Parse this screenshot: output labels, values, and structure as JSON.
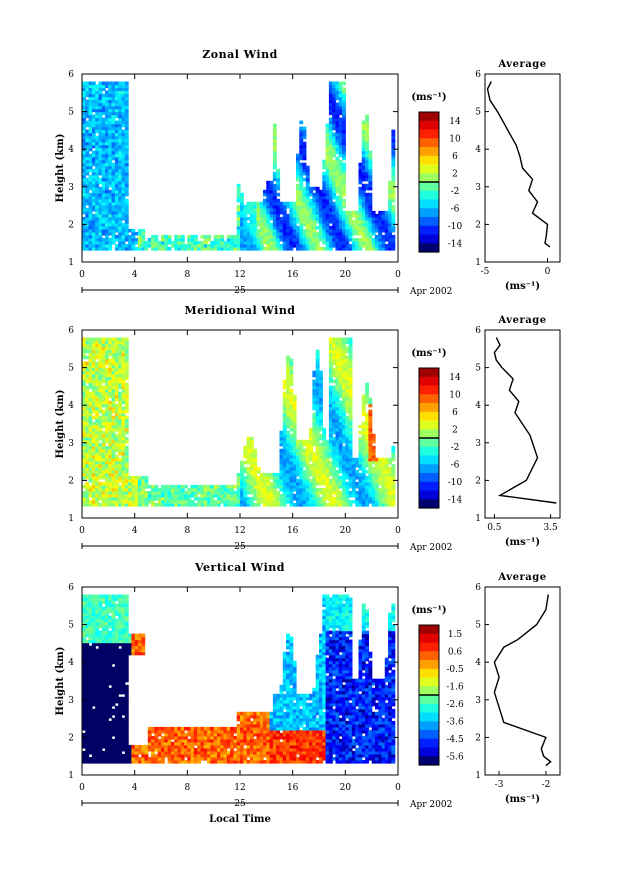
{
  "figure": {
    "x_axis_label": "Local Time",
    "date_label": "Apr 2002",
    "day_label": "25",
    "x_ticks": [
      "0",
      "4",
      "8",
      "12",
      "16",
      "20",
      "0"
    ],
    "y_axis_label": "Height (km)",
    "y_ticks": [
      "1",
      "2",
      "3",
      "4",
      "5",
      "6"
    ],
    "colorbar_unit": "(ms⁻¹)",
    "profile_unit": "(ms⁻¹)"
  },
  "chart_data": [
    {
      "type": "heatmap",
      "title": "Zonal Wind",
      "xlabel": "",
      "ylabel": "Height (km)",
      "xlim": [
        0,
        24
      ],
      "ylim": [
        1,
        6
      ],
      "x_ticks": [
        "0",
        "4",
        "8",
        "12",
        "16",
        "20",
        "0"
      ],
      "y_ticks": [
        "1",
        "2",
        "3",
        "4",
        "5",
        "6"
      ],
      "colorbar": {
        "unit": "(ms⁻¹)",
        "ticks": [
          "14",
          "10",
          "6",
          "2",
          "-2",
          "-6",
          "-10",
          "-14"
        ],
        "range": [
          -16,
          16
        ]
      },
      "average_profile": {
        "title": "Average",
        "xlabel": "(ms⁻¹)",
        "x_ticks": [
          "-5",
          "0"
        ],
        "xlim": [
          -5,
          1
        ],
        "height": [
          1.4,
          1.5,
          1.7,
          2.0,
          2.3,
          2.6,
          2.9,
          3.2,
          3.5,
          3.8,
          4.1,
          4.4,
          4.7,
          5.0,
          5.3,
          5.6,
          5.8
        ],
        "value": [
          0.2,
          -0.2,
          -0.1,
          0.0,
          -1.2,
          -0.8,
          -1.5,
          -1.2,
          -2.0,
          -2.2,
          -2.5,
          -3.0,
          -3.5,
          -4.0,
          -4.6,
          -4.8,
          -4.5
        ]
      }
    },
    {
      "type": "heatmap",
      "title": "Meridional Wind",
      "xlabel": "",
      "ylabel": "Height (km)",
      "xlim": [
        0,
        24
      ],
      "ylim": [
        1,
        6
      ],
      "x_ticks": [
        "0",
        "4",
        "8",
        "12",
        "16",
        "20",
        "0"
      ],
      "y_ticks": [
        "1",
        "2",
        "3",
        "4",
        "5",
        "6"
      ],
      "colorbar": {
        "unit": "(ms⁻¹)",
        "ticks": [
          "14",
          "10",
          "6",
          "2",
          "-2",
          "-6",
          "-10",
          "-14"
        ],
        "range": [
          -16,
          16
        ]
      },
      "average_profile": {
        "title": "Average",
        "xlabel": "(ms⁻¹)",
        "x_ticks": [
          "0.5",
          "3.5"
        ],
        "xlim": [
          0,
          4
        ],
        "height": [
          1.4,
          1.6,
          1.8,
          2.0,
          2.3,
          2.6,
          2.9,
          3.2,
          3.5,
          3.8,
          4.1,
          4.4,
          4.7,
          5.0,
          5.2,
          5.4,
          5.6,
          5.8
        ],
        "value": [
          3.8,
          0.8,
          1.5,
          2.2,
          2.5,
          2.8,
          2.6,
          2.4,
          2.0,
          1.6,
          1.8,
          1.3,
          1.5,
          0.9,
          0.6,
          0.5,
          0.8,
          0.6
        ]
      }
    },
    {
      "type": "heatmap",
      "title": "Vertical Wind",
      "xlabel": "Local Time",
      "ylabel": "Height (km)",
      "xlim": [
        0,
        24
      ],
      "ylim": [
        1,
        6
      ],
      "x_ticks": [
        "0",
        "4",
        "8",
        "12",
        "16",
        "20",
        "0"
      ],
      "y_ticks": [
        "1",
        "2",
        "3",
        "4",
        "5",
        "6"
      ],
      "colorbar": {
        "unit": "(ms⁻¹)",
        "ticks": [
          "1.5",
          "0.6",
          "-0.5",
          "-1.6",
          "-2.6",
          "-3.6",
          "-4.5",
          "-5.6"
        ],
        "range": [
          -6,
          2
        ]
      },
      "average_profile": {
        "title": "Average",
        "xlabel": "(ms⁻¹)",
        "x_ticks": [
          "-3",
          "-2"
        ],
        "xlim": [
          -3.3,
          -1.7
        ],
        "height": [
          1.25,
          1.35,
          1.5,
          1.7,
          2.0,
          2.4,
          2.8,
          3.2,
          3.6,
          4.0,
          4.4,
          4.6,
          5.0,
          5.4,
          5.8
        ],
        "value": [
          -2.0,
          -1.9,
          -2.05,
          -2.1,
          -2.0,
          -2.9,
          -3.0,
          -3.1,
          -3.0,
          -3.1,
          -2.9,
          -2.6,
          -2.2,
          -2.0,
          -1.95
        ]
      }
    }
  ]
}
